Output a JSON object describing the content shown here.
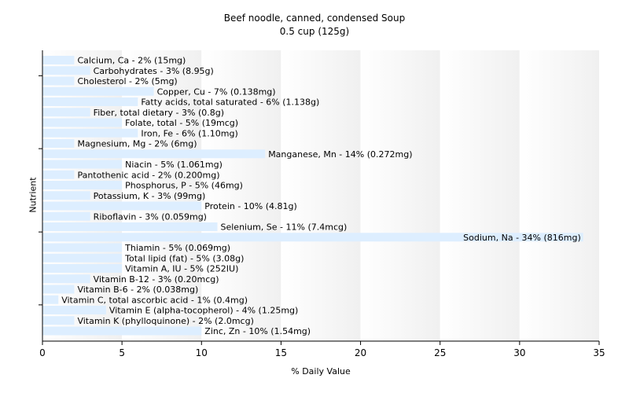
{
  "header": {
    "title": "Beef noodle, canned, condensed Soup",
    "subtitle": "0.5 cup (125g)"
  },
  "chart_data": {
    "type": "bar",
    "orientation": "horizontal",
    "title": "Beef noodle, canned, condensed Soup",
    "subtitle": "0.5 cup (125g)",
    "xlabel": "% Daily Value",
    "ylabel": "Nutrient",
    "xlim": [
      0,
      35
    ],
    "xticks": [
      0,
      5,
      10,
      15,
      20,
      25,
      30,
      35
    ],
    "bar_color": "#ddeeff",
    "grid": "vertical bands",
    "categories": [
      "Calcium, Ca",
      "Carbohydrates",
      "Cholesterol",
      "Copper, Cu",
      "Fatty acids, total saturated",
      "Fiber, total dietary",
      "Folate, total",
      "Iron, Fe",
      "Magnesium, Mg",
      "Manganese, Mn",
      "Niacin",
      "Pantothenic acid",
      "Phosphorus, P",
      "Potassium, K",
      "Protein",
      "Riboflavin",
      "Selenium, Se",
      "Sodium, Na",
      "Thiamin",
      "Total lipid (fat)",
      "Vitamin A, IU",
      "Vitamin B-12",
      "Vitamin B-6",
      "Vitamin C, total ascorbic acid",
      "Vitamin E (alpha-tocopherol)",
      "Vitamin K (phylloquinone)",
      "Zinc, Zn"
    ],
    "values": [
      2,
      3,
      2,
      7,
      6,
      3,
      5,
      6,
      2,
      14,
      5,
      2,
      5,
      3,
      10,
      3,
      11,
      34,
      5,
      5,
      5,
      3,
      2,
      1,
      4,
      2,
      10
    ],
    "labels": [
      "Calcium, Ca - 2% (15mg)",
      "Carbohydrates - 3% (8.95g)",
      "Cholesterol - 2% (5mg)",
      "Copper, Cu - 7% (0.138mg)",
      "Fatty acids, total saturated - 6% (1.138g)",
      "Fiber, total dietary - 3% (0.8g)",
      "Folate, total - 5% (19mcg)",
      "Iron, Fe - 6% (1.10mg)",
      "Magnesium, Mg - 2% (6mg)",
      "Manganese, Mn - 14% (0.272mg)",
      "Niacin - 5% (1.061mg)",
      "Pantothenic acid - 2% (0.200mg)",
      "Phosphorus, P - 5% (46mg)",
      "Potassium, K - 3% (99mg)",
      "Protein - 10% (4.81g)",
      "Riboflavin - 3% (0.059mg)",
      "Selenium, Se - 11% (7.4mcg)",
      "Sodium, Na - 34% (816mg)",
      "Thiamin - 5% (0.069mg)",
      "Total lipid (fat) - 5% (3.08g)",
      "Vitamin A, IU - 5% (252IU)",
      "Vitamin B-12 - 3% (0.20mcg)",
      "Vitamin B-6 - 2% (0.038mg)",
      "Vitamin C, total ascorbic acid - 1% (0.4mg)",
      "Vitamin E (alpha-tocopherol) - 4% (1.25mg)",
      "Vitamin K (phylloquinone) - 2% (2.0mcg)",
      "Zinc, Zn - 10% (1.54mg)"
    ]
  }
}
